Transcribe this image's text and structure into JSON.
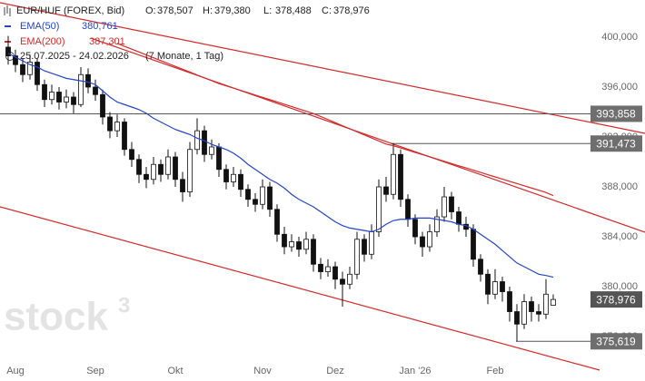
{
  "chart_data": {
    "type": "candlestick",
    "title": "EUR/HUF (FOREX, Bid)",
    "ohlc_header": [
      {
        "name": "O:",
        "value": 378.507,
        "label": "378,507"
      },
      {
        "name": "H:",
        "value": 379.38,
        "label": "379,380"
      },
      {
        "name": "L:",
        "value": 378.488,
        "label": "378,488"
      },
      {
        "name": "C:",
        "value": 378.976,
        "label": "378,976"
      }
    ],
    "date_range": "25.07.2025 - 24.02.2026",
    "period": "(7 Monate, 1 Tag)",
    "watermark": {
      "text": "stock",
      "sup": "3"
    },
    "categories": [
      null,
      "Aug",
      null,
      null,
      null,
      null,
      null,
      null,
      null,
      null,
      null,
      null,
      "Sep",
      null,
      null,
      null,
      null,
      null,
      null,
      null,
      null,
      null,
      null,
      "Okt",
      null,
      null,
      null,
      null,
      null,
      null,
      null,
      null,
      null,
      null,
      null,
      "Nov",
      null,
      null,
      null,
      null,
      null,
      null,
      null,
      null,
      null,
      "Dez",
      null,
      null,
      null,
      null,
      null,
      null,
      null,
      null,
      null,
      null,
      "Jan '26",
      null,
      null,
      null,
      null,
      null,
      null,
      null,
      null,
      null,
      null,
      "Feb",
      null,
      null,
      null,
      null,
      null,
      null,
      null,
      null
    ],
    "candles": [
      [
        399.2,
        400.1,
        397.8,
        398.5
      ],
      [
        398.5,
        399.0,
        397.2,
        397.8
      ],
      [
        397.8,
        398.3,
        396.4,
        397.0
      ],
      [
        397.0,
        398.6,
        396.6,
        398.0
      ],
      [
        398.0,
        398.3,
        395.7,
        396.2
      ],
      [
        396.2,
        396.6,
        394.4,
        395.0
      ],
      [
        395.0,
        396.2,
        394.6,
        395.6
      ],
      [
        395.6,
        396.0,
        394.2,
        394.8
      ],
      [
        394.8,
        395.8,
        394.3,
        395.2
      ],
      [
        395.2,
        395.6,
        393.9,
        394.6
      ],
      [
        394.6,
        397.6,
        394.4,
        397.0
      ],
      [
        397.0,
        397.5,
        395.5,
        396.0
      ],
      [
        396.0,
        396.6,
        394.9,
        395.4
      ],
      [
        395.4,
        395.8,
        393.0,
        393.6
      ],
      [
        393.6,
        394.0,
        391.9,
        392.5
      ],
      [
        392.5,
        393.8,
        392.0,
        393.2
      ],
      [
        393.2,
        393.5,
        390.5,
        391.0
      ],
      [
        391.0,
        391.6,
        389.6,
        390.2
      ],
      [
        390.2,
        390.6,
        388.3,
        389.0
      ],
      [
        389.0,
        389.6,
        387.9,
        388.6
      ],
      [
        388.6,
        390.4,
        388.2,
        389.8
      ],
      [
        389.8,
        390.2,
        388.4,
        389.0
      ],
      [
        389.0,
        391.0,
        388.6,
        390.4
      ],
      [
        390.4,
        390.8,
        388.0,
        388.6
      ],
      [
        388.6,
        389.2,
        386.8,
        387.6
      ],
      [
        387.6,
        391.6,
        387.2,
        391.0
      ],
      [
        391.0,
        393.5,
        390.6,
        392.5
      ],
      [
        392.5,
        392.9,
        390.0,
        390.6
      ],
      [
        390.6,
        391.8,
        390.2,
        391.2
      ],
      [
        391.2,
        391.5,
        388.8,
        389.4
      ],
      [
        389.4,
        389.8,
        387.8,
        388.4
      ],
      [
        388.4,
        389.6,
        388.0,
        389.0
      ],
      [
        389.0,
        389.4,
        387.2,
        387.8
      ],
      [
        387.8,
        388.2,
        386.4,
        387.0
      ],
      [
        387.0,
        387.5,
        386.0,
        386.6
      ],
      [
        386.6,
        388.6,
        386.2,
        388.0
      ],
      [
        388.0,
        388.4,
        385.6,
        386.2
      ],
      [
        386.2,
        386.6,
        383.6,
        384.2
      ],
      [
        384.2,
        384.8,
        382.6,
        383.2
      ],
      [
        383.2,
        384.2,
        382.8,
        383.6
      ],
      [
        383.6,
        384.0,
        382.4,
        383.0
      ],
      [
        383.0,
        384.4,
        382.6,
        383.8
      ],
      [
        383.8,
        384.2,
        381.2,
        381.8
      ],
      [
        381.8,
        382.3,
        380.6,
        381.2
      ],
      [
        381.2,
        382.2,
        380.8,
        381.6
      ],
      [
        381.6,
        382.0,
        379.8,
        380.6
      ],
      [
        380.6,
        381.2,
        378.4,
        380.2
      ],
      [
        380.2,
        381.6,
        379.8,
        381.0
      ],
      [
        381.0,
        384.4,
        380.6,
        383.8
      ],
      [
        383.8,
        384.2,
        382.0,
        382.6
      ],
      [
        382.6,
        385.0,
        382.2,
        384.4
      ],
      [
        384.4,
        388.6,
        384.0,
        388.0
      ],
      [
        388.0,
        388.8,
        386.8,
        387.4
      ],
      [
        387.4,
        391.5,
        387.0,
        390.6
      ],
      [
        390.6,
        391.0,
        386.4,
        387.0
      ],
      [
        387.0,
        387.4,
        384.8,
        385.4
      ],
      [
        385.4,
        385.8,
        383.4,
        384.0
      ],
      [
        384.0,
        384.4,
        382.4,
        383.2
      ],
      [
        383.2,
        385.0,
        382.8,
        384.4
      ],
      [
        384.4,
        386.2,
        384.0,
        385.6
      ],
      [
        385.6,
        388.0,
        385.2,
        387.2
      ],
      [
        387.2,
        387.6,
        385.4,
        386.0
      ],
      [
        386.0,
        386.4,
        384.4,
        385.0
      ],
      [
        385.0,
        385.6,
        384.0,
        384.6
      ],
      [
        384.6,
        385.0,
        381.6,
        382.2
      ],
      [
        382.2,
        382.6,
        380.4,
        381.0
      ],
      [
        381.0,
        381.4,
        378.6,
        379.4
      ],
      [
        379.4,
        381.4,
        379.0,
        380.4
      ],
      [
        380.4,
        380.8,
        378.8,
        379.6
      ],
      [
        379.6,
        380.0,
        377.2,
        378.0
      ],
      [
        378.0,
        378.6,
        375.619,
        377.0
      ],
      [
        377.0,
        379.4,
        376.6,
        378.8
      ],
      [
        378.8,
        379.2,
        377.2,
        378.0
      ],
      [
        378.0,
        378.6,
        377.2,
        377.8
      ],
      [
        377.8,
        380.6,
        377.4,
        379.4
      ],
      [
        378.507,
        379.38,
        378.488,
        378.976
      ]
    ],
    "series": [
      {
        "name": "EMA(50)",
        "color": "#2346c8",
        "legend_value": {
          "value": 380.761,
          "label": "380,761"
        },
        "values": [
          398.7,
          398.4,
          398.1,
          397.8,
          397.6,
          397.3,
          397.1,
          396.9,
          396.7,
          396.6,
          396.5,
          396.4,
          396.2,
          395.7,
          395.2,
          394.8,
          394.6,
          394.4,
          394.2,
          393.9,
          393.5,
          393.2,
          392.9,
          392.6,
          392.4,
          392.2,
          391.9,
          391.7,
          391.4,
          391.2,
          391.0,
          390.7,
          390.3,
          389.8,
          389.4,
          389.0,
          388.6,
          388.3,
          387.9,
          387.4,
          387.0,
          386.7,
          386.4,
          386.0,
          385.6,
          385.2,
          384.9,
          384.7,
          384.6,
          384.5,
          384.4,
          384.6,
          385.0,
          385.3,
          385.4,
          385.4,
          385.5,
          385.5,
          385.5,
          385.4,
          385.3,
          385.2,
          385.0,
          384.9,
          384.6,
          384.2,
          383.8,
          383.4,
          382.9,
          382.4,
          381.9,
          381.6,
          381.3,
          381.0,
          380.9,
          380.761
        ]
      },
      {
        "name": "EMA(200)",
        "color": "#d42a2a",
        "legend_value": {
          "value": 387.301,
          "label": "387,301"
        },
        "values": [
          null,
          null,
          null,
          null,
          null,
          null,
          null,
          null,
          null,
          null,
          null,
          null,
          null,
          null,
          null,
          399.5,
          399.27,
          399.04,
          398.81,
          398.58,
          398.35,
          398.12,
          397.89,
          397.66,
          397.43,
          397.2,
          396.97,
          396.74,
          396.51,
          396.28,
          396.1,
          395.92,
          395.73,
          395.55,
          395.36,
          395.18,
          394.99,
          394.81,
          394.62,
          394.44,
          394.25,
          394.07,
          393.88,
          393.64,
          393.4,
          393.15,
          392.9,
          392.66,
          392.41,
          392.17,
          391.92,
          391.68,
          391.43,
          391.3,
          391.12,
          390.94,
          390.76,
          390.59,
          390.41,
          390.23,
          390.05,
          389.87,
          389.69,
          389.52,
          389.34,
          389.16,
          388.98,
          388.8,
          388.62,
          388.44,
          388.27,
          388.09,
          387.91,
          387.73,
          387.55,
          387.301
        ]
      }
    ],
    "levels": [
      {
        "value": 393.858,
        "label": "393,858"
      },
      {
        "value": 391.473,
        "label": "391,473"
      },
      {
        "value": 375.619,
        "label": "375,619"
      }
    ],
    "last_price": {
      "value": 378.976,
      "label": "378,976"
    },
    "ylim": [
      372.44,
      402.98
    ],
    "yticks": [
      {
        "value": 376,
        "label": "376,000"
      },
      {
        "value": 380,
        "label": "380,000"
      },
      {
        "value": 384,
        "label": "384,000"
      },
      {
        "value": 388,
        "label": "388,000"
      },
      {
        "value": 392,
        "label": "392,000"
      },
      {
        "value": 396,
        "label": "396,000"
      },
      {
        "value": 400,
        "label": "400,000"
      }
    ],
    "grid": false,
    "up_color": "#ffffff",
    "down_color": "#111111"
  }
}
